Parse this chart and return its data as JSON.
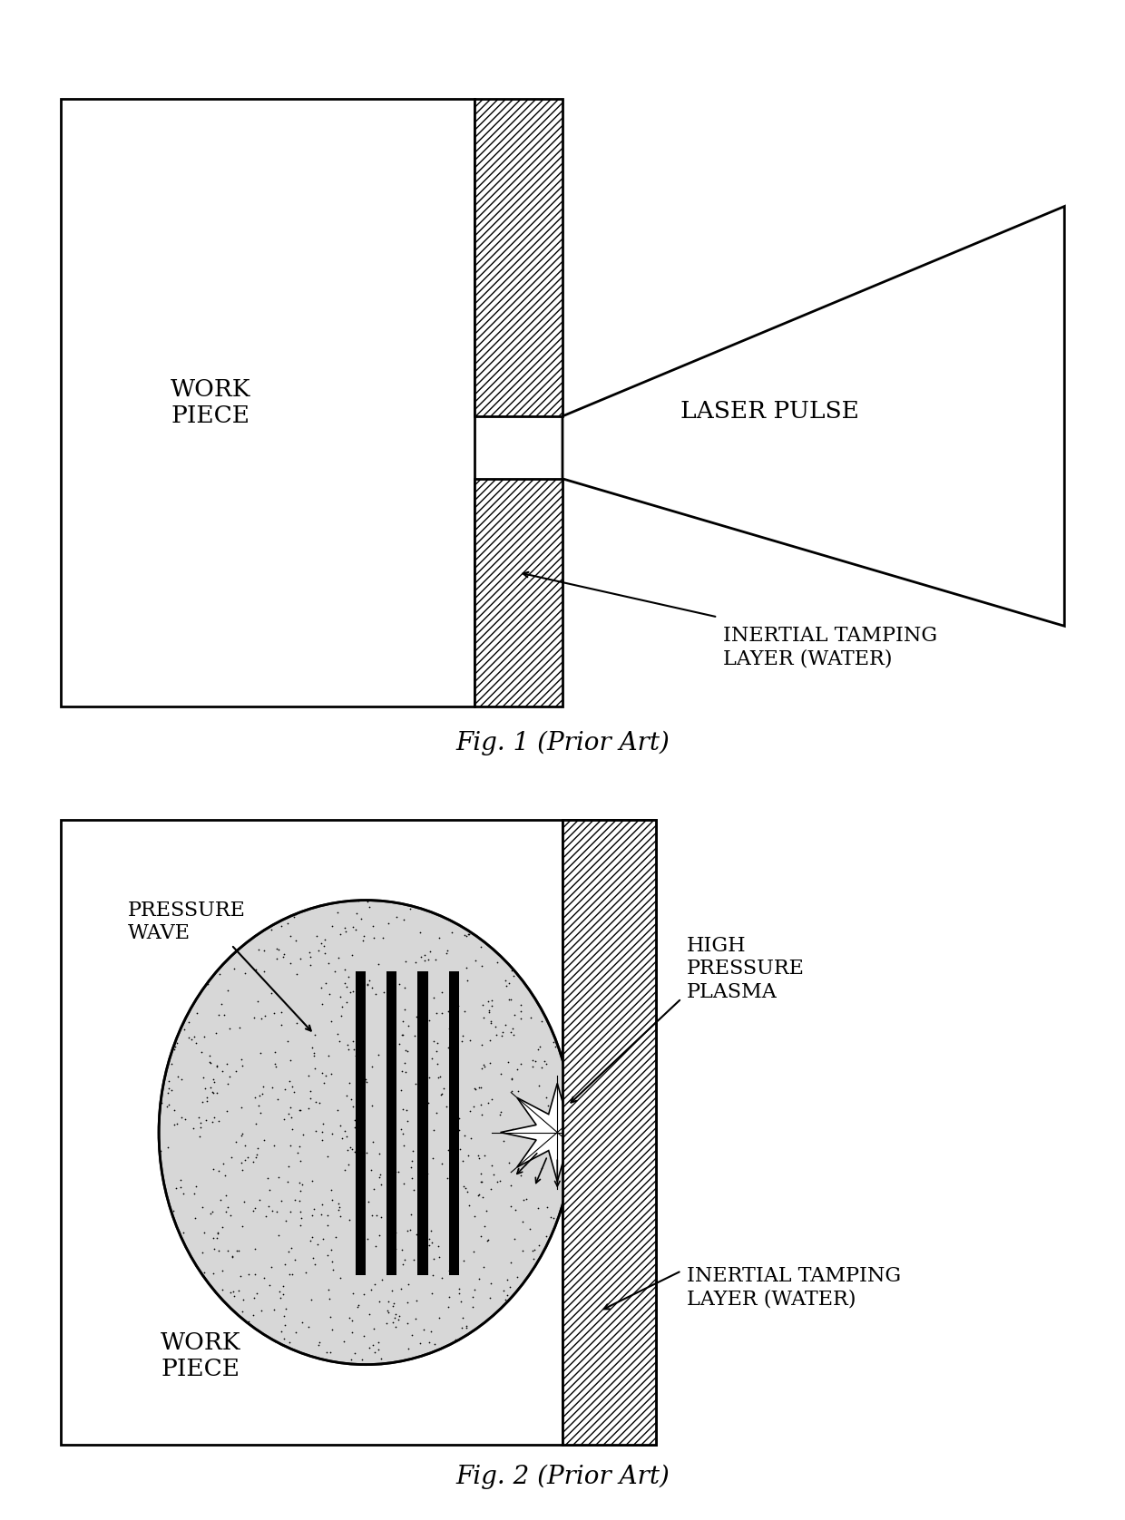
{
  "fig_width": 12.4,
  "fig_height": 16.76,
  "bg_color": "#ffffff",
  "line_color": "#000000",
  "fig1": {
    "title": "Fig. 1 (Prior Art)",
    "workpiece_label": "WORK\nPIECE",
    "laser_label": "LASER PULSE",
    "tamping_label": "INERTIAL TAMPING\nLAYER (WATER)"
  },
  "fig2": {
    "title": "Fig. 2 (Prior Art)",
    "workpiece_label": "WORK\nPIECE",
    "pressure_label": "PRESSURE\nWAVE",
    "plasma_label": "HIGH\nPRESSURE\nPLASMA",
    "tamping_label": "INERTIAL TAMPING\nLAYER (WATER)"
  }
}
